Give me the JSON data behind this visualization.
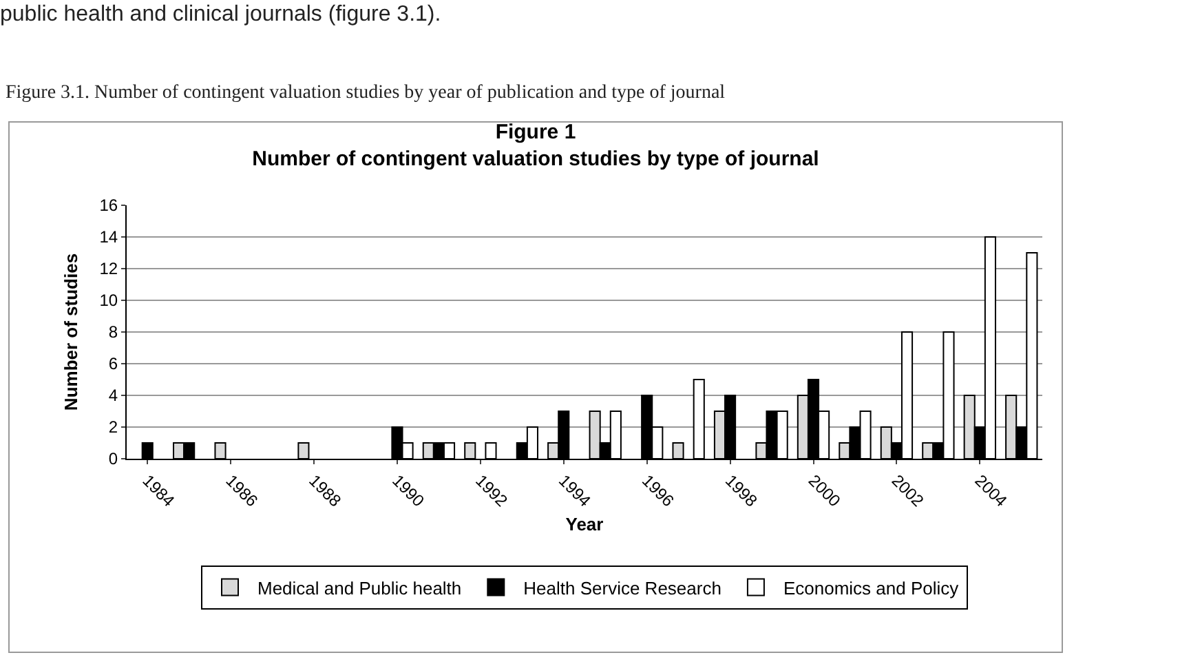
{
  "chart_data": {
    "type": "bar",
    "title": "Figure 1",
    "subtitle": "Number of contingent valuation studies by type of journal",
    "xlabel": "Year",
    "ylabel": "Number of studies",
    "annotations": [
      "public health and clinical journals (figure 3.1).",
      "Figure 3.1. Number of contingent valuation studies by year of publication and type of journal"
    ],
    "categories": [
      "1984",
      null,
      "1986",
      null,
      "1988",
      null,
      "1990",
      null,
      "1992",
      null,
      "1994",
      null,
      "1996",
      null,
      "1998",
      null,
      "2000",
      null,
      "2002",
      null,
      "2004",
      null
    ],
    "series": [
      {
        "name": "Medical and Public health",
        "color": "#d9d9d9",
        "values": [
          null,
          1,
          1,
          null,
          1,
          null,
          null,
          1,
          1,
          null,
          1,
          3,
          null,
          1,
          3,
          1,
          4,
          1,
          2,
          1,
          4,
          4
        ]
      },
      {
        "name": "Health Service Research",
        "color": "#000000",
        "values": [
          1,
          1,
          null,
          null,
          null,
          null,
          2,
          1,
          null,
          1,
          3,
          1,
          4,
          null,
          4,
          3,
          5,
          2,
          1,
          1,
          2,
          2
        ]
      },
      {
        "name": "Economics and Policy",
        "color": "#ffffff",
        "values": [
          null,
          null,
          null,
          null,
          null,
          null,
          1,
          1,
          1,
          2,
          null,
          3,
          2,
          5,
          null,
          3,
          3,
          3,
          8,
          8,
          14,
          13
        ]
      }
    ],
    "ylim": [
      0,
      16
    ],
    "yticks": [
      0,
      2,
      4,
      6,
      8,
      10,
      12,
      14,
      16
    ],
    "grid": "y",
    "legend": "bottom"
  }
}
